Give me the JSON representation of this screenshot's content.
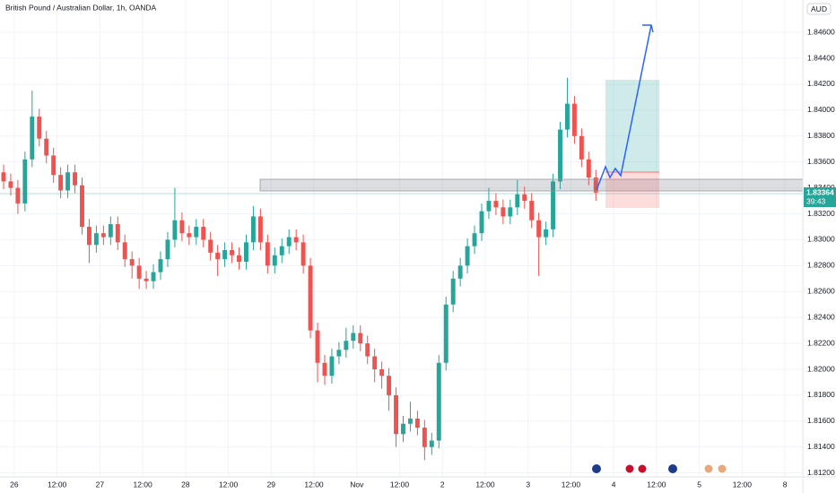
{
  "chart_data": {
    "type": "candlestick",
    "title": "British Pound / Australian Dollar, 1h, OANDA",
    "currency": "AUD",
    "countdown": "39:43",
    "up_color": "#26a69a",
    "down_color": "#ef5350",
    "open": [
      1.8352,
      1.8345,
      1.834,
      1.8328,
      1.8362,
      1.8395,
      1.8378,
      1.8365,
      1.835,
      1.8338,
      1.8352,
      1.8342,
      1.831,
      1.8296,
      1.8305,
      1.8302,
      1.8312,
      1.8298,
      1.8285,
      1.828,
      1.827,
      1.8268,
      1.8275,
      1.8285,
      1.83,
      1.8315,
      1.8305,
      1.8302,
      1.831,
      1.83,
      1.829,
      1.8285,
      1.8292,
      1.8288,
      1.8283,
      1.8298,
      1.8318,
      1.8298,
      1.828,
      1.8288,
      1.8295,
      1.8302,
      1.8298,
      1.828,
      1.823,
      1.8205,
      1.8195,
      1.821,
      1.8215,
      1.8222,
      1.8228,
      1.822,
      1.821,
      1.82,
      1.8195,
      1.818,
      1.815,
      1.8158,
      1.8162,
      1.8155,
      1.814,
      1.8145,
      1.8205,
      1.825,
      1.827,
      1.828,
      1.8295,
      1.8305,
      1.8322,
      1.833,
      1.8325,
      1.8318,
      1.8325,
      1.8335,
      1.833,
      1.8315,
      1.8302,
      1.8308,
      1.8345,
      1.8385,
      1.8405,
      1.838,
      1.8362,
      1.8348
    ],
    "high": [
      1.8358,
      1.8351,
      1.8346,
      1.8368,
      1.8415,
      1.8401,
      1.8384,
      1.8371,
      1.8356,
      1.8358,
      1.8358,
      1.8348,
      1.8316,
      1.8311,
      1.8311,
      1.8318,
      1.8318,
      1.8304,
      1.8291,
      1.8286,
      1.8276,
      1.8281,
      1.8291,
      1.8306,
      1.834,
      1.8321,
      1.8311,
      1.8316,
      1.8316,
      1.8306,
      1.8296,
      1.8298,
      1.8298,
      1.8294,
      1.8304,
      1.8326,
      1.8324,
      1.8304,
      1.8294,
      1.8301,
      1.8308,
      1.8308,
      1.8304,
      1.8286,
      1.8236,
      1.8211,
      1.8216,
      1.8221,
      1.8232,
      1.8234,
      1.8234,
      1.8226,
      1.8216,
      1.8206,
      1.8201,
      1.8186,
      1.8164,
      1.8175,
      1.8168,
      1.8161,
      1.8151,
      1.8211,
      1.8256,
      1.8276,
      1.8286,
      1.8301,
      1.8311,
      1.8328,
      1.834,
      1.8336,
      1.8331,
      1.8331,
      1.8346,
      1.8341,
      1.8336,
      1.8321,
      1.8314,
      1.8351,
      1.8391,
      1.8425,
      1.8411,
      1.8386,
      1.8368,
      1.8354
    ],
    "low": [
      1.8339,
      1.8334,
      1.832,
      1.8322,
      1.8356,
      1.8372,
      1.8359,
      1.8344,
      1.8332,
      1.8332,
      1.8336,
      1.8304,
      1.8282,
      1.829,
      1.8296,
      1.8296,
      1.8292,
      1.8279,
      1.827,
      1.8262,
      1.8262,
      1.8262,
      1.8269,
      1.8279,
      1.8294,
      1.8299,
      1.8296,
      1.8296,
      1.8294,
      1.8284,
      1.8272,
      1.8279,
      1.8282,
      1.8277,
      1.8277,
      1.8292,
      1.8292,
      1.8274,
      1.8274,
      1.8282,
      1.8289,
      1.8292,
      1.8274,
      1.8224,
      1.819,
      1.8188,
      1.8189,
      1.8204,
      1.8209,
      1.8216,
      1.8214,
      1.8204,
      1.819,
      1.8185,
      1.8168,
      1.814,
      1.8144,
      1.8152,
      1.8149,
      1.813,
      1.8134,
      1.8139,
      1.8199,
      1.8244,
      1.8264,
      1.8274,
      1.8289,
      1.8299,
      1.8316,
      1.8319,
      1.8312,
      1.8312,
      1.8319,
      1.8324,
      1.8309,
      1.8272,
      1.8296,
      1.8302,
      1.8339,
      1.8379,
      1.8374,
      1.8356,
      1.8342,
      1.833
    ],
    "close": [
      1.8345,
      1.834,
      1.8328,
      1.8362,
      1.8395,
      1.8378,
      1.8365,
      1.835,
      1.8338,
      1.8352,
      1.8342,
      1.831,
      1.8296,
      1.8305,
      1.8302,
      1.8312,
      1.8298,
      1.8285,
      1.828,
      1.827,
      1.8268,
      1.8275,
      1.8285,
      1.83,
      1.8315,
      1.8305,
      1.8302,
      1.831,
      1.83,
      1.829,
      1.8285,
      1.8292,
      1.8288,
      1.8283,
      1.8298,
      1.8318,
      1.8298,
      1.828,
      1.8288,
      1.8295,
      1.8302,
      1.8298,
      1.828,
      1.823,
      1.8205,
      1.8195,
      1.821,
      1.8215,
      1.8222,
      1.8228,
      1.822,
      1.821,
      1.82,
      1.8195,
      1.818,
      1.815,
      1.8158,
      1.8162,
      1.8155,
      1.814,
      1.8145,
      1.8205,
      1.825,
      1.827,
      1.828,
      1.8295,
      1.8305,
      1.8322,
      1.833,
      1.8325,
      1.8318,
      1.8325,
      1.8335,
      1.833,
      1.8315,
      1.8302,
      1.8308,
      1.8345,
      1.8385,
      1.8405,
      1.838,
      1.8362,
      1.8348,
      1.83364
    ],
    "xlim": [
      -0.5,
      112
    ],
    "xticks": [
      {
        "value": 1.5,
        "label": "26"
      },
      {
        "value": 7.5,
        "label": "12:00"
      },
      {
        "value": 13.5,
        "label": "27"
      },
      {
        "value": 19.5,
        "label": "12:00"
      },
      {
        "value": 25.5,
        "label": "28"
      },
      {
        "value": 31.5,
        "label": "12:00"
      },
      {
        "value": 37.5,
        "label": "29"
      },
      {
        "value": 43.5,
        "label": "12:00"
      },
      {
        "value": 49.5,
        "label": "Nov"
      },
      {
        "value": 55.5,
        "label": "12:00"
      },
      {
        "value": 61.5,
        "label": "2"
      },
      {
        "value": 67.5,
        "label": "12:00"
      },
      {
        "value": 73.5,
        "label": "3"
      },
      {
        "value": 79.5,
        "label": "12:00"
      },
      {
        "value": 85.5,
        "label": "4"
      },
      {
        "value": 91.5,
        "label": "12:00"
      },
      {
        "value": 97.5,
        "label": "5"
      },
      {
        "value": 103.5,
        "label": "12:00"
      },
      {
        "value": 109.5,
        "label": "8"
      }
    ],
    "ylim": [
      1.8117,
      1.8485
    ],
    "yticks": [
      {
        "value": 1.812,
        "label": "1.81200"
      },
      {
        "value": 1.814,
        "label": "1.81400"
      },
      {
        "value": 1.816,
        "label": "1.81600"
      },
      {
        "value": 1.818,
        "label": "1.81800"
      },
      {
        "value": 1.82,
        "label": "1.82000"
      },
      {
        "value": 1.822,
        "label": "1.82200"
      },
      {
        "value": 1.824,
        "label": "1.82400"
      },
      {
        "value": 1.826,
        "label": "1.82600"
      },
      {
        "value": 1.828,
        "label": "1.82800"
      },
      {
        "value": 1.83,
        "label": "1.83000"
      },
      {
        "value": 1.832,
        "label": "1.83200"
      },
      {
        "value": 1.834,
        "label": "1.83400"
      },
      {
        "value": 1.836,
        "label": "1.83600"
      },
      {
        "value": 1.838,
        "label": "1.83800"
      },
      {
        "value": 1.84,
        "label": "1.84000"
      },
      {
        "value": 1.842,
        "label": "1.84200"
      },
      {
        "value": 1.844,
        "label": "1.84400"
      },
      {
        "value": 1.846,
        "label": "1.84600"
      }
    ]
  }
}
